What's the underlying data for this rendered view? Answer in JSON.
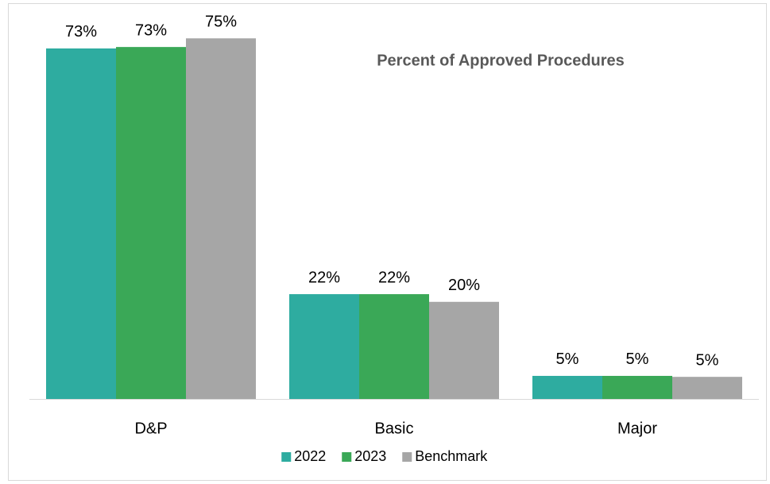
{
  "chart_data": {
    "type": "bar",
    "title": "Percent of Approved Procedures",
    "categories": [
      "D&P",
      "Basic",
      "Major"
    ],
    "series": [
      {
        "name": "2022",
        "color": "#2eaca0",
        "values": [
          72.9,
          21.8,
          4.8
        ],
        "value_labels": [
          "73%",
          "22%",
          "5%"
        ]
      },
      {
        "name": "2023",
        "color": "#3aa857",
        "values": [
          73.2,
          21.8,
          4.8
        ],
        "value_labels": [
          "73%",
          "22%",
          "5%"
        ]
      },
      {
        "name": "Benchmark",
        "color": "#a6a6a6",
        "values": [
          75,
          20.2,
          4.6
        ],
        "value_labels": [
          "75%",
          "20%",
          "5%"
        ]
      }
    ],
    "ylim": [
      0,
      80
    ],
    "legend": "bottom"
  }
}
